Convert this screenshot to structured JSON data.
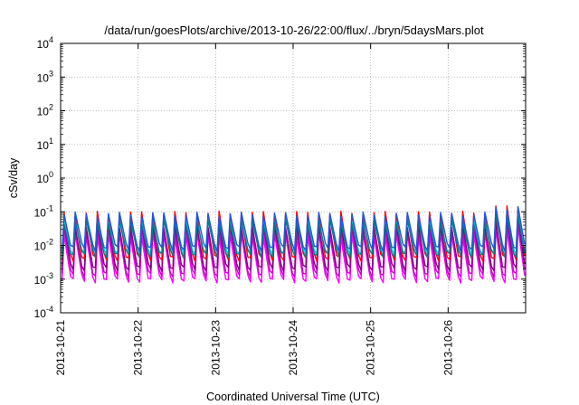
{
  "chart_data": {
    "type": "line",
    "title": "/data/run/goesPlots/archive/2013-10-26/22:00/flux/../bryn/5daysMars.plot",
    "xlabel": "Coordinated Universal Time (UTC)",
    "ylabel": "cSv/day",
    "y_scale": "log",
    "ylim": [
      0.0001,
      10000
    ],
    "xlim": [
      "2013-10-21",
      "2013-10-27"
    ],
    "grid": true,
    "x_ticks": [
      "2013-10-21",
      "2013-10-22",
      "2013-10-23",
      "2013-10-24",
      "2013-10-25",
      "2013-10-26"
    ],
    "y_ticks": [
      {
        "base": "10",
        "exp": "-4"
      },
      {
        "base": "10",
        "exp": "-3"
      },
      {
        "base": "10",
        "exp": "-2"
      },
      {
        "base": "10",
        "exp": "-1"
      },
      {
        "base": "10",
        "exp": "0"
      },
      {
        "base": "10",
        "exp": "1"
      },
      {
        "base": "10",
        "exp": "2"
      },
      {
        "base": "10",
        "exp": "3"
      },
      {
        "base": "10",
        "exp": "4"
      }
    ],
    "cycles_per_day": 7,
    "series": [
      {
        "color": "#ff00ff",
        "peak": 0.02,
        "trough": 0.0009
      },
      {
        "color": "#cc00cc",
        "peak": 0.03,
        "trough": 0.0013
      },
      {
        "color": "#800080",
        "peak": 0.04,
        "trough": 0.002
      },
      {
        "color": "#ff0000",
        "peak": 0.09,
        "trough": 0.004
      },
      {
        "color": "#00ccff",
        "peak": 0.06,
        "trough": 0.006
      },
      {
        "color": "#008080",
        "peak": 0.05,
        "trough": 0.005
      },
      {
        "color": "#2255dd",
        "peak": 0.085,
        "trough": 0.008
      }
    ]
  }
}
